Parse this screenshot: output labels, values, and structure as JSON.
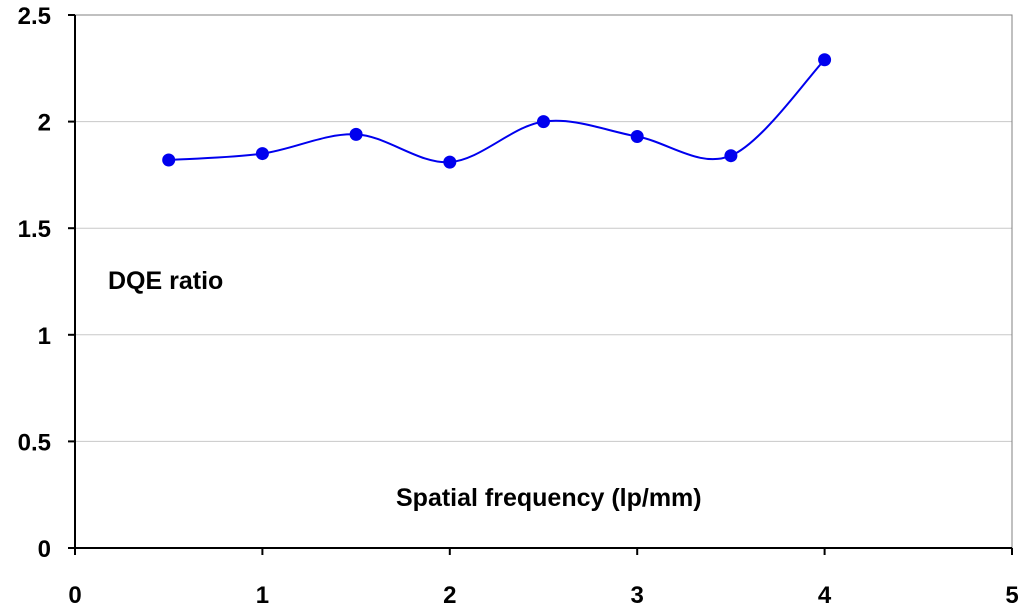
{
  "chart_data": {
    "type": "line",
    "title": "",
    "xlabel": "Spatial frequency (lp/mm)",
    "ylabel": "DQE ratio",
    "xlim": [
      0,
      5
    ],
    "ylim": [
      0,
      2.5
    ],
    "x_ticks": [
      "0",
      "1",
      "2",
      "3",
      "4",
      "5"
    ],
    "y_ticks": [
      "0",
      "0.5",
      "1",
      "1.5",
      "2",
      "2.5"
    ],
    "grid": "horizontal",
    "smooth": true,
    "series": [
      {
        "color": "#0000ee",
        "x": [
          0.5,
          1.0,
          1.5,
          2.0,
          2.5,
          3.0,
          3.5,
          4.0
        ],
        "values": [
          1.82,
          1.85,
          1.94,
          1.81,
          2.0,
          1.93,
          1.84,
          2.29
        ]
      }
    ]
  }
}
